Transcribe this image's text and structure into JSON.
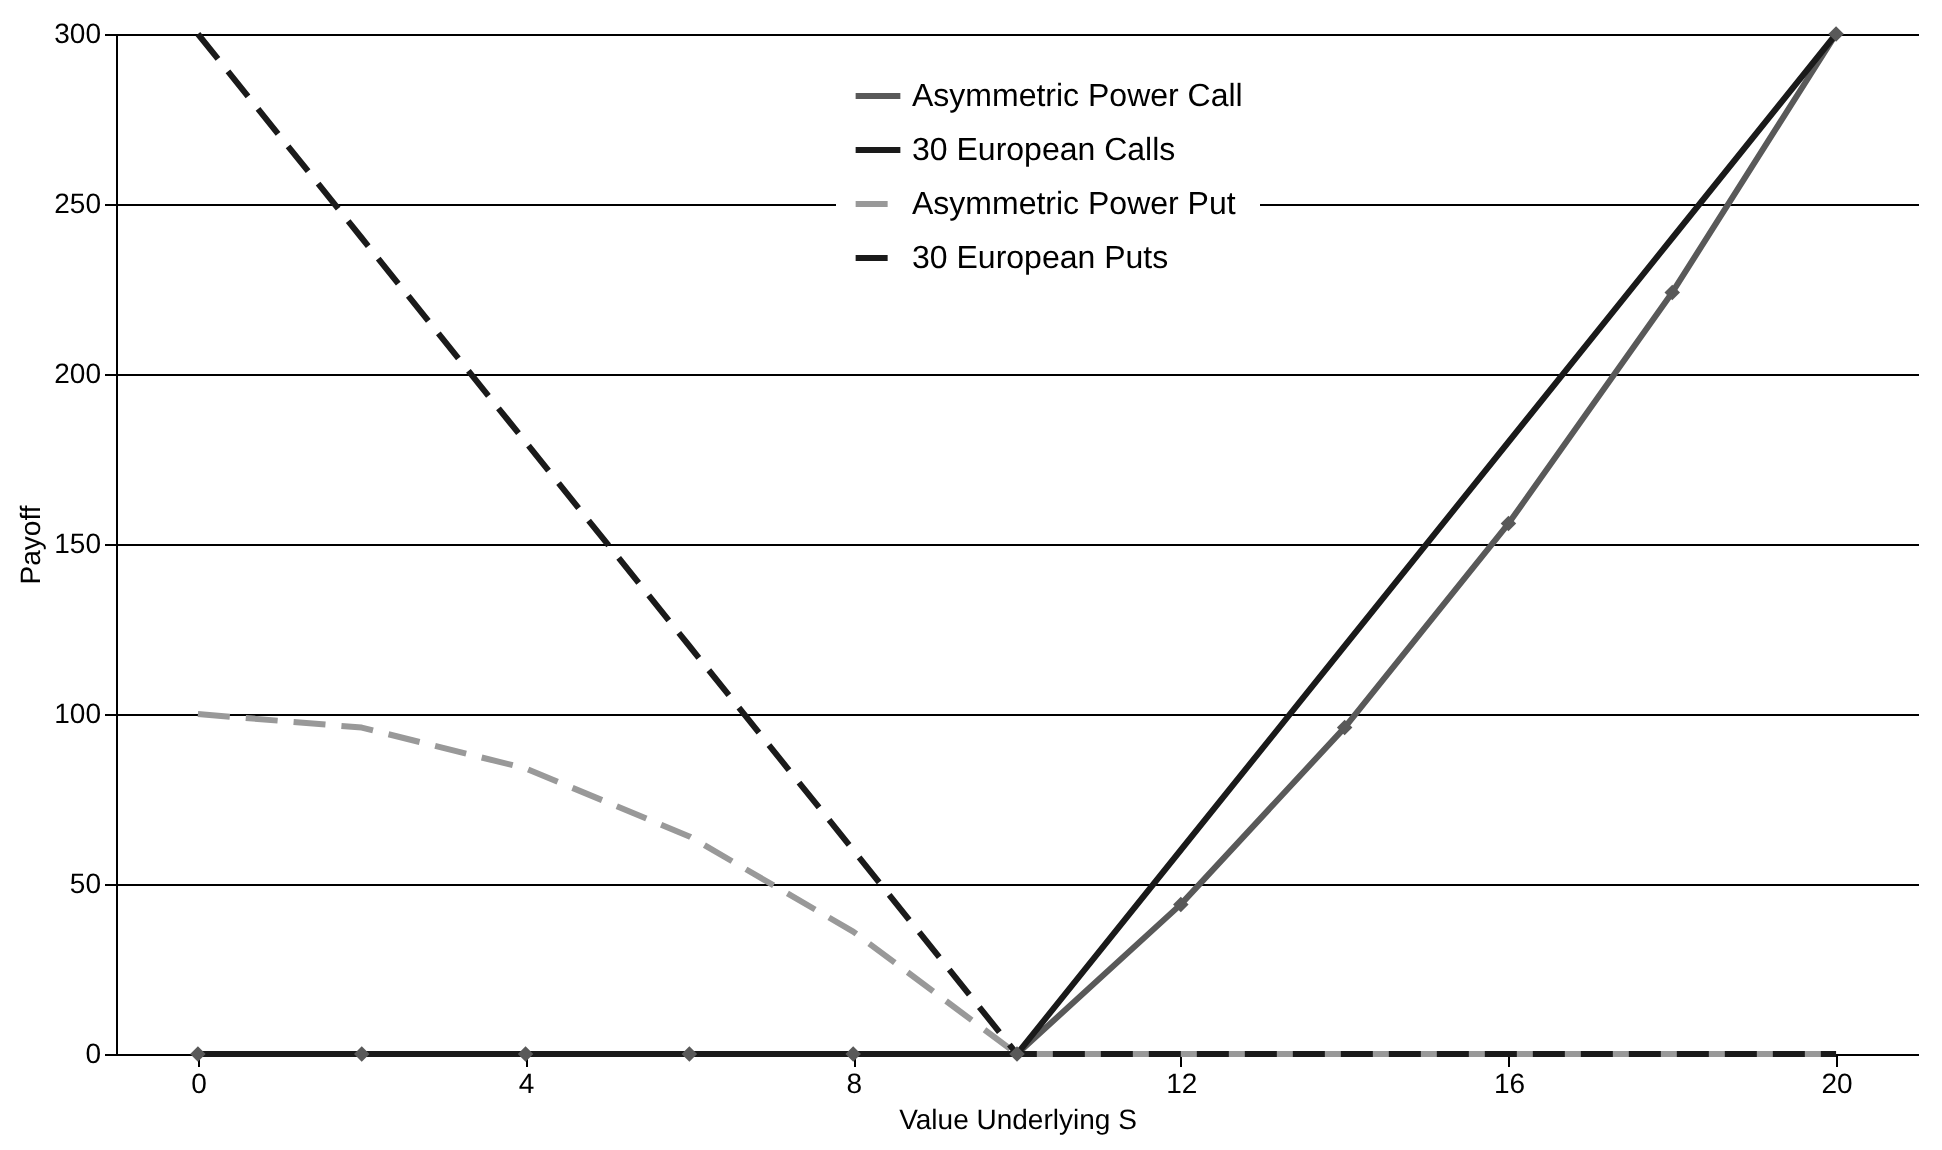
{
  "chart_data": {
    "type": "line",
    "xlabel": "Value Underlying S",
    "ylabel": "Payoff",
    "x": [
      0,
      2,
      4,
      6,
      8,
      10,
      12,
      14,
      16,
      18,
      20
    ],
    "series": [
      {
        "name": "Asymmetric Power Call",
        "color": "#595959",
        "marker": "diamond",
        "line_style": "solid",
        "values": [
          0,
          0,
          0,
          0,
          0,
          0,
          44,
          96,
          156,
          224,
          300
        ]
      },
      {
        "name": "30 European Calls",
        "color": "#1a1a1a",
        "line_style": "solid",
        "values": [
          0,
          0,
          0,
          0,
          0,
          0,
          60,
          120,
          180,
          240,
          300
        ]
      },
      {
        "name": "Asymmetric Power Put",
        "color": "#999999",
        "line_style": "dashed",
        "values": [
          100,
          96,
          84,
          64,
          36,
          0,
          0,
          0,
          0,
          0,
          0
        ]
      },
      {
        "name": "30 European Puts",
        "color": "#1a1a1a",
        "line_style": "dashed",
        "values": [
          300,
          240,
          180,
          120,
          60,
          0,
          0,
          0,
          0,
          0,
          0
        ]
      }
    ],
    "xlim": [
      -1,
      21
    ],
    "xticks": [
      0,
      4,
      8,
      12,
      16,
      20
    ],
    "ylim": [
      0,
      300
    ],
    "yticks": [
      0,
      50,
      100,
      150,
      200,
      250,
      300
    ],
    "grid": "y",
    "legend": "top"
  }
}
